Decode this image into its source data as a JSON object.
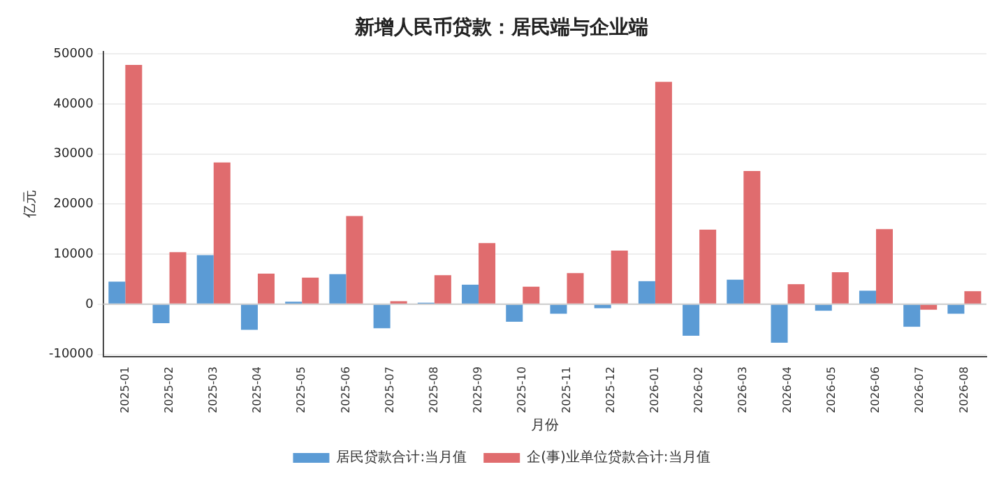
{
  "chart_data": {
    "type": "bar",
    "title": "新增人民币贷款：居民端与企业端",
    "xlabel": "月份",
    "ylabel": "亿元",
    "categories": [
      "2025-01",
      "2025-02",
      "2025-03",
      "2025-04",
      "2025-05",
      "2025-06",
      "2025-07",
      "2025-08",
      "2025-09",
      "2025-10",
      "2025-11",
      "2025-12",
      "2026-01",
      "2026-02",
      "2026-03",
      "2026-04",
      "2026-05",
      "2026-06",
      "2026-07",
      "2026-08"
    ],
    "series": [
      {
        "name": "居民贷款合计:当月值",
        "color": "#5b9bd5",
        "values": [
          4500,
          -3800,
          9800,
          -5100,
          500,
          6000,
          -4800,
          300,
          3900,
          -3500,
          -1900,
          -800,
          4600,
          -6300,
          4900,
          -7700,
          -1300,
          2700,
          -4500,
          -1900
        ]
      },
      {
        "name": "企(事)业单位贷款合计:当月值",
        "color": "#e06c6e",
        "values": [
          47800,
          10400,
          28300,
          6100,
          5300,
          17600,
          600,
          5800,
          12200,
          3500,
          6200,
          10700,
          44400,
          14900,
          26600,
          4000,
          6400,
          15000,
          -1100,
          2600
        ]
      }
    ],
    "ylim": [
      -10500,
      50500
    ],
    "yticks": [
      -10000,
      0,
      10000,
      20000,
      30000,
      40000,
      50000
    ],
    "grid": "y",
    "legend": "bottom"
  }
}
